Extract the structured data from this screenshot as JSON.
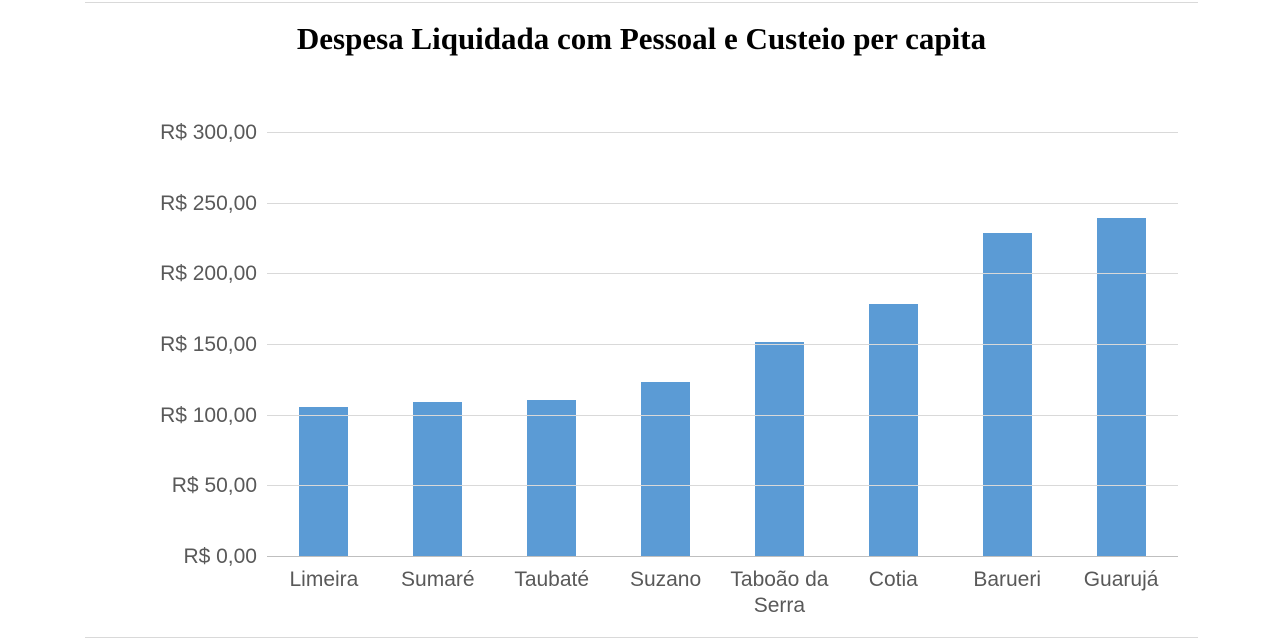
{
  "chart": {
    "type": "bar",
    "title": "Despesa Liquidada com Pessoal e Custeio per capita",
    "title_fontsize": 31,
    "title_color": "#000000",
    "categories": [
      "Limeira",
      "Sumaré",
      "Taubaté",
      "Suzano",
      "Taboão da Serra",
      "Cotia",
      "Barueri",
      "Guarujá"
    ],
    "values": [
      106,
      110,
      111,
      124,
      152,
      179,
      229,
      240
    ],
    "bar_color": "#5b9bd5",
    "bar_width_ratio": 0.43,
    "ylim": [
      0,
      300
    ],
    "ytick_step": 50,
    "y_tick_labels": [
      "R$ 0,00",
      "R$ 50,00",
      "R$ 100,00",
      "R$ 150,00",
      "R$ 200,00",
      "R$ 250,00",
      "R$ 300,00"
    ],
    "axis_label_fontsize": 21,
    "axis_label_color": "#595959",
    "axis_font_family": "Arial",
    "grid_color": "#d9d9d9",
    "baseline_color": "#bfbfbf",
    "background_color": "#ffffff",
    "frame_border_color": "#d9d9d9"
  }
}
